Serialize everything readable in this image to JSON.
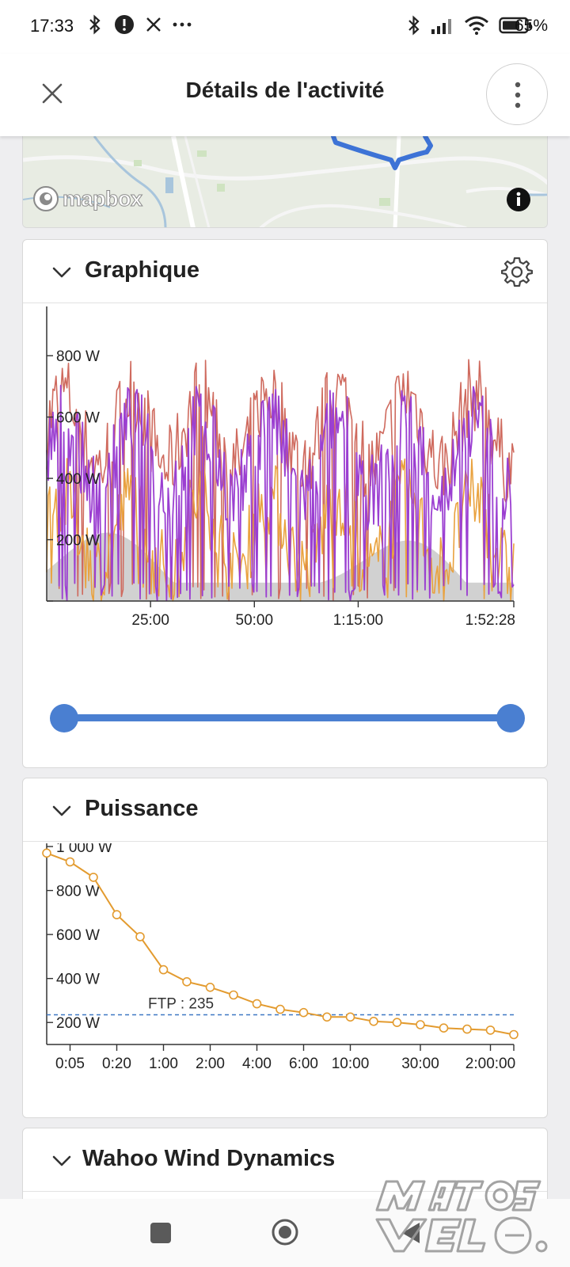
{
  "status_bar": {
    "time": "17:33",
    "left_icons": [
      "bluetooth-off-icon",
      "notification-dot-icon",
      "x-app-icon",
      "more-dots-icon"
    ],
    "right_icons": [
      "bluetooth-icon",
      "signal-icon",
      "wifi-icon",
      "battery-icon"
    ],
    "battery": "65%"
  },
  "header": {
    "title": "Détails de l'activité",
    "close_icon": "close-icon",
    "menu_icon": "vertical-dots-icon"
  },
  "map": {
    "attribution": "mapbox",
    "route_color": "#3d73d6"
  },
  "graph_section": {
    "title": "Graphique",
    "settings_icon": "gear-icon",
    "slider": {
      "start": 0,
      "end": 1
    }
  },
  "power_section": {
    "title": "Puissance",
    "ftp_label": "FTP : 235"
  },
  "wind_section": {
    "title": "Wahoo Wind Dynamics"
  },
  "chart_data": [
    {
      "type": "line",
      "y_tick_labels": [
        "200 W",
        "400 W",
        "600 W",
        "800 W"
      ],
      "y_ticks": [
        200,
        400,
        600,
        800
      ],
      "ylim": [
        0,
        940
      ],
      "x_tick_labels": [
        "25:00",
        "50:00",
        "1:15:00",
        "1:52:28"
      ],
      "x_ticks": [
        1500,
        3000,
        4500,
        6748
      ],
      "xlim": [
        0,
        6748
      ],
      "series": [
        {
          "color": "#cf6a5e",
          "style": "line"
        },
        {
          "color": "#e9a23f",
          "style": "line"
        },
        {
          "color": "#9b3fd1",
          "style": "line"
        },
        {
          "color": "#c9c9c9",
          "style": "area"
        }
      ]
    },
    {
      "type": "line",
      "y_tick_labels": [
        "200 W",
        "400 W",
        "600 W",
        "800 W",
        "1 000 W"
      ],
      "y_ticks": [
        200,
        400,
        600,
        800,
        1000
      ],
      "ylim": [
        100,
        1000
      ],
      "x_tick_labels": [
        "0:05",
        "0:20",
        "1:00",
        "2:00",
        "4:00",
        "6:00",
        "10:00",
        "30:00",
        "2:00:00"
      ],
      "ftp": 235,
      "line_color": "#e39b2f",
      "ftp_color": "#3e78c4",
      "values": [
        970,
        930,
        860,
        690,
        590,
        440,
        385,
        360,
        325,
        285,
        260,
        245,
        225,
        225,
        205,
        200,
        190,
        175,
        170,
        165,
        145
      ]
    }
  ]
}
